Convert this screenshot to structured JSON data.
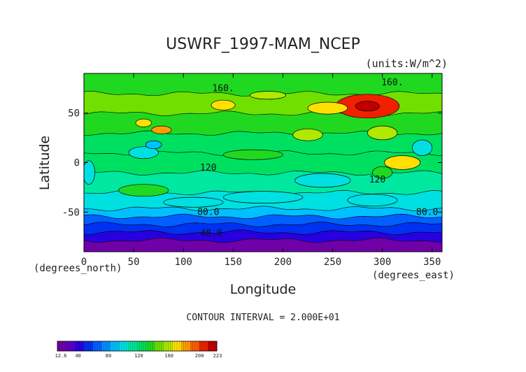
{
  "chart_data": {
    "type": "heatmap",
    "title": "USWRF_1997-MAM_NCEP",
    "units_label": "(units:W/m^2)",
    "xlabel": "Longitude",
    "ylabel": "Latitude",
    "x_unit_label": "(degrees_east)",
    "y_unit_label": "(degrees_north)",
    "xlim": [
      0,
      360
    ],
    "ylim": [
      -90,
      90
    ],
    "x_ticks": [
      "0",
      "50",
      "100",
      "150",
      "200",
      "250",
      "300",
      "350"
    ],
    "x_tick_values": [
      0,
      50,
      100,
      150,
      200,
      250,
      300,
      350
    ],
    "y_ticks": [
      "50",
      "0",
      "-50"
    ],
    "y_tick_values": [
      50,
      0,
      -50
    ],
    "contour_interval_text": "CONTOUR INTERVAL = 2.000E+01",
    "contour_labels": [
      {
        "text": "160.",
        "lon": 140,
        "lat": 72
      },
      {
        "text": "160.",
        "lon": 310,
        "lat": 78
      },
      {
        "text": "120",
        "lon": 125,
        "lat": -8
      },
      {
        "text": "120",
        "lon": 295,
        "lat": -20
      },
      {
        "text": "80.0",
        "lon": 125,
        "lat": -53
      },
      {
        "text": "80.0",
        "lon": 345,
        "lat": -53
      },
      {
        "text": "40.0",
        "lon": 128,
        "lat": -74
      }
    ],
    "colorbar": {
      "min_label": "12.6",
      "max_label": "223",
      "tick_labels": [
        "40",
        "80",
        "120",
        "160",
        "200"
      ],
      "tick_values": [
        40,
        80,
        120,
        160,
        200
      ],
      "min": 12.6,
      "max": 223,
      "colors": [
        "#7000a8",
        "#5a00c8",
        "#2800e0",
        "#0030f0",
        "#0060ff",
        "#0090ff",
        "#00c0ff",
        "#00e0e0",
        "#00e8a0",
        "#00e060",
        "#20d820",
        "#70e000",
        "#b0e800",
        "#ffe000",
        "#ffa000",
        "#ff6000",
        "#f02000",
        "#c00000"
      ]
    },
    "lat_bands": [
      {
        "lat_from": -90,
        "lat_to": -78,
        "value": 20
      },
      {
        "lat_from": -78,
        "lat_to": -70,
        "value": 40
      },
      {
        "lat_from": -70,
        "lat_to": -62,
        "value": 55
      },
      {
        "lat_from": -62,
        "lat_to": -54,
        "value": 70
      },
      {
        "lat_from": -54,
        "lat_to": -46,
        "value": 85
      },
      {
        "lat_from": -46,
        "lat_to": -30,
        "value": 100
      },
      {
        "lat_from": -30,
        "lat_to": -10,
        "value": 115
      },
      {
        "lat_from": -10,
        "lat_to": 10,
        "value": 125
      },
      {
        "lat_from": 10,
        "lat_to": 30,
        "value": 125
      },
      {
        "lat_from": 30,
        "lat_to": 50,
        "value": 135
      },
      {
        "lat_from": 50,
        "lat_to": 70,
        "value": 145
      },
      {
        "lat_from": 70,
        "lat_to": 90,
        "value": 135
      }
    ],
    "anomalies": [
      {
        "lon": 285,
        "lat": 57,
        "rx": 32,
        "ry": 12,
        "value": 200
      },
      {
        "lon": 285,
        "lat": 57,
        "rx": 12,
        "ry": 5,
        "value": 215
      },
      {
        "lon": 60,
        "lat": 40,
        "rx": 8,
        "ry": 4,
        "value": 175
      },
      {
        "lon": 78,
        "lat": 33,
        "rx": 10,
        "ry": 4,
        "value": 180
      },
      {
        "lon": 140,
        "lat": 58,
        "rx": 12,
        "ry": 5,
        "value": 170
      },
      {
        "lon": 245,
        "lat": 55,
        "rx": 20,
        "ry": 6,
        "value": 165
      },
      {
        "lon": 185,
        "lat": 68,
        "rx": 18,
        "ry": 4,
        "value": 160
      },
      {
        "lon": 320,
        "lat": 0,
        "rx": 18,
        "ry": 7,
        "value": 170
      },
      {
        "lon": 225,
        "lat": 28,
        "rx": 15,
        "ry": 6,
        "value": 160
      },
      {
        "lon": 300,
        "lat": 30,
        "rx": 15,
        "ry": 7,
        "value": 160
      },
      {
        "lon": 60,
        "lat": 10,
        "rx": 15,
        "ry": 6,
        "value": 95
      },
      {
        "lon": 70,
        "lat": 18,
        "rx": 8,
        "ry": 4,
        "value": 90
      },
      {
        "lon": 240,
        "lat": -18,
        "rx": 28,
        "ry": 7,
        "value": 95
      },
      {
        "lon": 340,
        "lat": 15,
        "rx": 10,
        "ry": 8,
        "value": 100
      },
      {
        "lon": 5,
        "lat": -10,
        "rx": 6,
        "ry": 12,
        "value": 95
      },
      {
        "lon": 180,
        "lat": -35,
        "rx": 40,
        "ry": 6,
        "value": 95
      },
      {
        "lon": 110,
        "lat": -40,
        "rx": 30,
        "ry": 5,
        "value": 100
      },
      {
        "lon": 290,
        "lat": -38,
        "rx": 25,
        "ry": 6,
        "value": 95
      },
      {
        "lon": 60,
        "lat": -28,
        "rx": 25,
        "ry": 6,
        "value": 135
      },
      {
        "lon": 300,
        "lat": -10,
        "rx": 10,
        "ry": 6,
        "value": 140
      },
      {
        "lon": 170,
        "lat": 8,
        "rx": 30,
        "ry": 5,
        "value": 130
      }
    ]
  }
}
